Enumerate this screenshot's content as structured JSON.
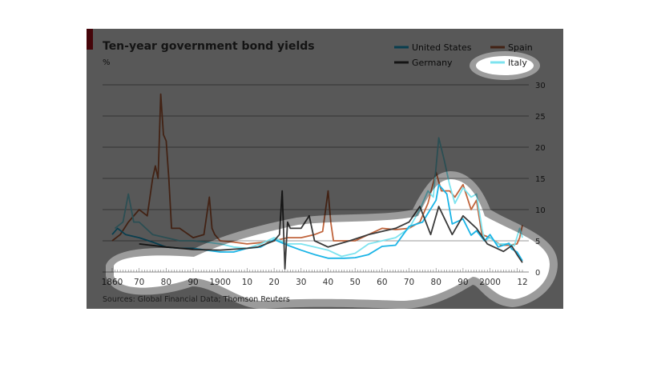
{
  "chart_data": {
    "type": "line",
    "title": "Ten-year government bond yields",
    "ylabel": "%",
    "source": "Sources: Global Financial Data; Thomson Reuters",
    "xlim": [
      1860,
      2012
    ],
    "ylim": [
      0,
      30
    ],
    "yticks": [
      0,
      5,
      10,
      15,
      20,
      25,
      30
    ],
    "xticks": [
      {
        "year": 1860,
        "label": "1860"
      },
      {
        "year": 1870,
        "label": "70"
      },
      {
        "year": 1880,
        "label": "80"
      },
      {
        "year": 1890,
        "label": "90"
      },
      {
        "year": 1900,
        "label": "1900"
      },
      {
        "year": 1910,
        "label": "10"
      },
      {
        "year": 1920,
        "label": "20"
      },
      {
        "year": 1930,
        "label": "30"
      },
      {
        "year": 1940,
        "label": "40"
      },
      {
        "year": 1950,
        "label": "50"
      },
      {
        "year": 1960,
        "label": "60"
      },
      {
        "year": 1970,
        "label": "70"
      },
      {
        "year": 1980,
        "label": "80"
      },
      {
        "year": 1990,
        "label": "90"
      },
      {
        "year": 2000,
        "label": "2000"
      },
      {
        "year": 2012,
        "label": "12"
      }
    ],
    "legend_position": "top-right",
    "grid": true,
    "series": [
      {
        "name": "Spain",
        "color": "#c0643c",
        "x": [
          1860,
          1863,
          1866,
          1870,
          1873,
          1875,
          1876,
          1877,
          1878,
          1879,
          1880,
          1881,
          1882,
          1885,
          1890,
          1894,
          1896,
          1897,
          1898,
          1900,
          1905,
          1910,
          1915,
          1920,
          1925,
          1930,
          1935,
          1938,
          1940,
          1941,
          1942,
          1946,
          1950,
          1955,
          1960,
          1965,
          1970,
          1974,
          1977,
          1980,
          1982,
          1985,
          1987,
          1990,
          1993,
          1995,
          1997,
          2000,
          2004,
          2007,
          2010,
          2011,
          2012
        ],
        "y": [
          5,
          6,
          8,
          10,
          9,
          15,
          17,
          15,
          28.5,
          22,
          21,
          15,
          7,
          7,
          5.5,
          6,
          12,
          7,
          6,
          5,
          4.8,
          4.5,
          4.7,
          5,
          5.5,
          5.5,
          6,
          6.5,
          13,
          8,
          5,
          5,
          5,
          6,
          7,
          6.8,
          7,
          8,
          11,
          16,
          13,
          13,
          12,
          14,
          10,
          11.5,
          6,
          5.5,
          4.3,
          4.3,
          4.5,
          5.5,
          7.5
        ]
      },
      {
        "name": "Italy",
        "color": "#7de3ef",
        "x": [
          1861,
          1864,
          1866,
          1868,
          1870,
          1875,
          1880,
          1885,
          1890,
          1895,
          1900,
          1905,
          1910,
          1915,
          1920,
          1925,
          1930,
          1935,
          1940,
          1945,
          1950,
          1955,
          1960,
          1965,
          1970,
          1974,
          1977,
          1979,
          1981,
          1983,
          1985,
          1987,
          1990,
          1993,
          1995,
          1997,
          1998,
          2000,
          2003,
          2007,
          2009,
          2011,
          2012
        ],
        "y": [
          7,
          8,
          12.5,
          8,
          8,
          6,
          5.5,
          5,
          5,
          4.8,
          4.5,
          4,
          3.8,
          4.5,
          5.5,
          4.5,
          4.5,
          4,
          3.5,
          2.5,
          3,
          4.5,
          5,
          5.5,
          7,
          10,
          13,
          12,
          21.5,
          18,
          14,
          11,
          13.5,
          12,
          12.5,
          7,
          5,
          5.5,
          4.5,
          4.5,
          4.2,
          7,
          5.5
        ]
      },
      {
        "name": "United States",
        "color": "#1ab4e6",
        "x": [
          1860,
          1862,
          1865,
          1870,
          1875,
          1880,
          1885,
          1890,
          1895,
          1900,
          1905,
          1910,
          1915,
          1920,
          1925,
          1930,
          1935,
          1940,
          1946,
          1950,
          1955,
          1960,
          1965,
          1970,
          1975,
          1980,
          1981,
          1984,
          1986,
          1990,
          1993,
          1995,
          1998,
          2000,
          2003,
          2007,
          2008,
          2010,
          2012
        ],
        "y": [
          6,
          7,
          6,
          5.5,
          4.8,
          4,
          3.8,
          3.8,
          3.5,
          3.2,
          3.2,
          3.8,
          4,
          5.2,
          4.3,
          3.5,
          2.8,
          2.2,
          2.2,
          2.3,
          2.8,
          4.1,
          4.3,
          7.3,
          8,
          11.5,
          14,
          12.5,
          7.7,
          8.5,
          5.9,
          6.6,
          5,
          6,
          4,
          4.6,
          3.7,
          3.2,
          1.8
        ]
      },
      {
        "name": "Germany",
        "color": "#3a3a3a",
        "x": [
          1870,
          1880,
          1890,
          1900,
          1910,
          1914,
          1920,
          1922,
          1923,
          1924,
          1925,
          1926,
          1930,
          1933,
          1935,
          1940,
          1948,
          1955,
          1960,
          1965,
          1970,
          1974,
          1978,
          1981,
          1986,
          1990,
          1995,
          1999,
          2005,
          2008,
          2010,
          2012
        ],
        "y": [
          4.5,
          4,
          3.6,
          3.5,
          3.8,
          4,
          5,
          6,
          13,
          0.5,
          8,
          7,
          7,
          9,
          5,
          4,
          5,
          6,
          6.5,
          7,
          8,
          10.5,
          6,
          10.5,
          6,
          9,
          7,
          4.5,
          3.3,
          4.2,
          2.8,
          1.5
        ]
      }
    ]
  }
}
